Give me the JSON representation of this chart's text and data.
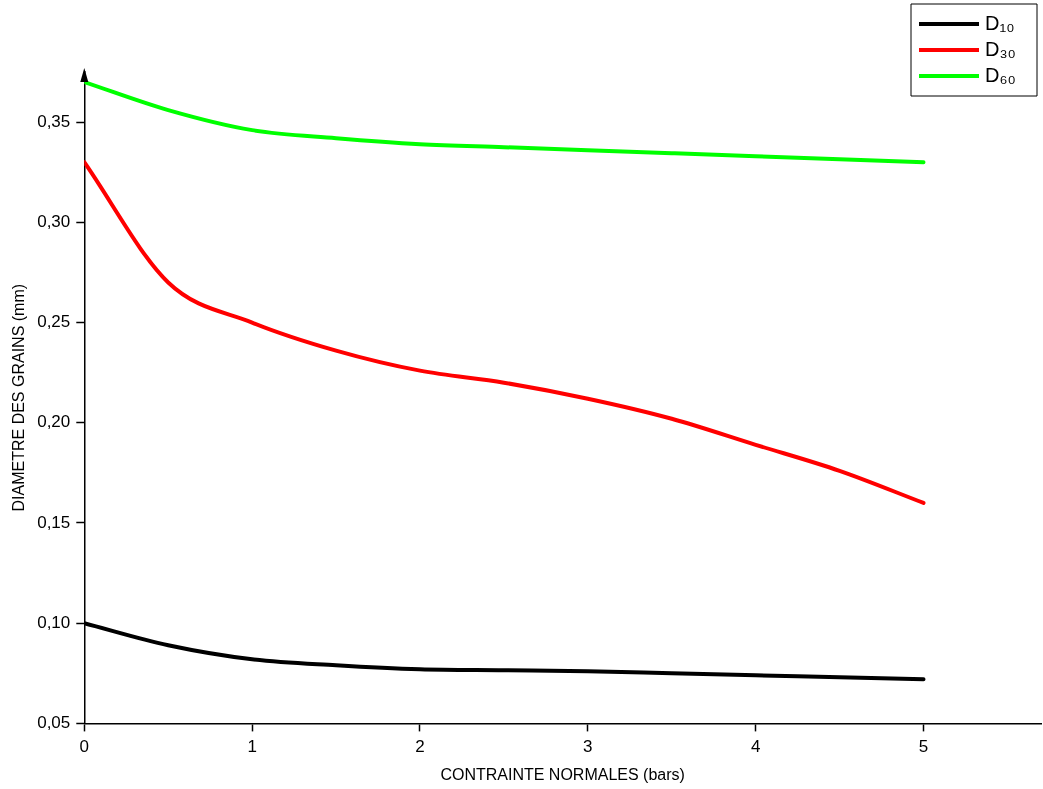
{
  "chart_data": {
    "type": "line",
    "xlabel": "CONTRAINTE NORMALES (bars)",
    "ylabel": "DIAMETRE DES GRAINS (mm)",
    "x": [
      0,
      0.5,
      1,
      1.5,
      2,
      2.5,
      3,
      3.5,
      4,
      4.5,
      5
    ],
    "series": [
      {
        "name": "D₁₀",
        "color": "#000000",
        "values": [
          0.1,
          0.089,
          0.082,
          0.079,
          0.077,
          0.0765,
          0.076,
          0.075,
          0.074,
          0.073,
          0.072
        ]
      },
      {
        "name": "D₃₀",
        "color": "#ff0000",
        "values": [
          0.33,
          0.27,
          0.25,
          0.236,
          0.226,
          0.22,
          0.212,
          0.202,
          0.189,
          0.176,
          0.16
        ]
      },
      {
        "name": "D₆₀",
        "color": "#00ff00",
        "values": [
          0.37,
          0.356,
          0.346,
          0.342,
          0.339,
          0.3375,
          0.336,
          0.3345,
          0.333,
          0.3315,
          0.33
        ]
      }
    ],
    "xlim": [
      0,
      5.7
    ],
    "xticks": [
      0,
      1,
      2,
      3,
      4,
      5
    ],
    "ylim": [
      0.05,
      0.375
    ],
    "yticks": [
      {
        "value": 0.05,
        "label": "0,05"
      },
      {
        "value": 0.1,
        "label": "0,10"
      },
      {
        "value": 0.15,
        "label": "0,15"
      },
      {
        "value": 0.2,
        "label": "0,20"
      },
      {
        "value": 0.25,
        "label": "0,25"
      },
      {
        "value": 0.3,
        "label": "0,30"
      },
      {
        "value": 0.35,
        "label": "0,35"
      }
    ],
    "grid": false,
    "legend": "top right",
    "marker": "none",
    "line_style": "solid"
  }
}
